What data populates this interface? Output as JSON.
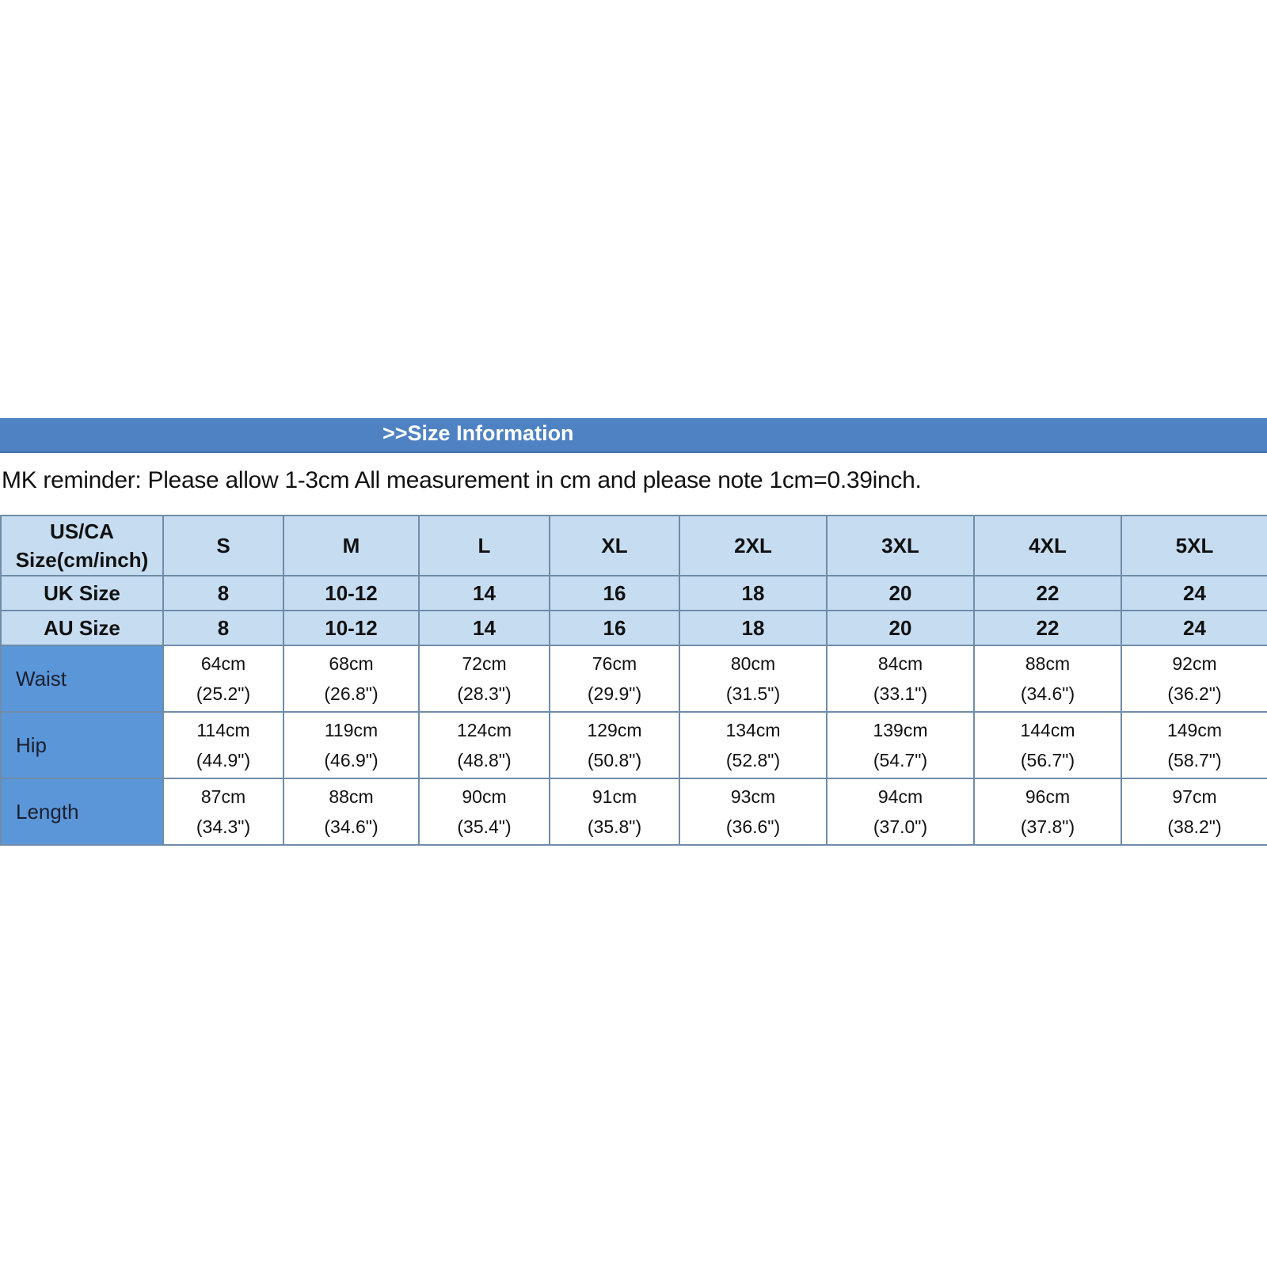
{
  "banner": {
    "title": ">>Size Information"
  },
  "reminder": "MK reminder: Please allow 1-3cm All measurement in cm and please note 1cm=0.39inch.",
  "colors": {
    "banner": "#4f82c3",
    "header_cells": "#c6dcf1",
    "row_labels": "#5b96d8"
  },
  "table": {
    "header": {
      "label_line1": "US/CA",
      "label_line2": "Size(cm/inch)",
      "sizes": [
        "S",
        "M",
        "L",
        "XL",
        "2XL",
        "3XL",
        "4XL",
        "5XL"
      ]
    },
    "uk": {
      "label": "UK Size",
      "values": [
        "8",
        "10-12",
        "14",
        "16",
        "18",
        "20",
        "22",
        "24"
      ]
    },
    "au": {
      "label": "AU Size",
      "values": [
        "8",
        "10-12",
        "14",
        "16",
        "18",
        "20",
        "22",
        "24"
      ]
    },
    "rows": [
      {
        "label": "Waist",
        "cm": [
          "64cm",
          "68cm",
          "72cm",
          "76cm",
          "80cm",
          "84cm",
          "88cm",
          "92cm"
        ],
        "inch": [
          "(25.2\")",
          "(26.8\")",
          "(28.3\")",
          "(29.9\")",
          "(31.5\")",
          "(33.1\")",
          "(34.6\")",
          "(36.2\")"
        ]
      },
      {
        "label": "Hip",
        "cm": [
          "114cm",
          "119cm",
          "124cm",
          "129cm",
          "134cm",
          "139cm",
          "144cm",
          "149cm"
        ],
        "inch": [
          "(44.9\")",
          "(46.9\")",
          "(48.8\")",
          "(50.8\")",
          "(52.8\")",
          "(54.7\")",
          "(56.7\")",
          "(58.7\")"
        ]
      },
      {
        "label": "Length",
        "cm": [
          "87cm",
          "88cm",
          "90cm",
          "91cm",
          "93cm",
          "94cm",
          "96cm",
          "97cm"
        ],
        "inch": [
          "(34.3\")",
          "(34.6\")",
          "(35.4\")",
          "(35.8\")",
          "(36.6\")",
          "(37.0\")",
          "(37.8\")",
          "(38.2\")"
        ]
      }
    ]
  }
}
